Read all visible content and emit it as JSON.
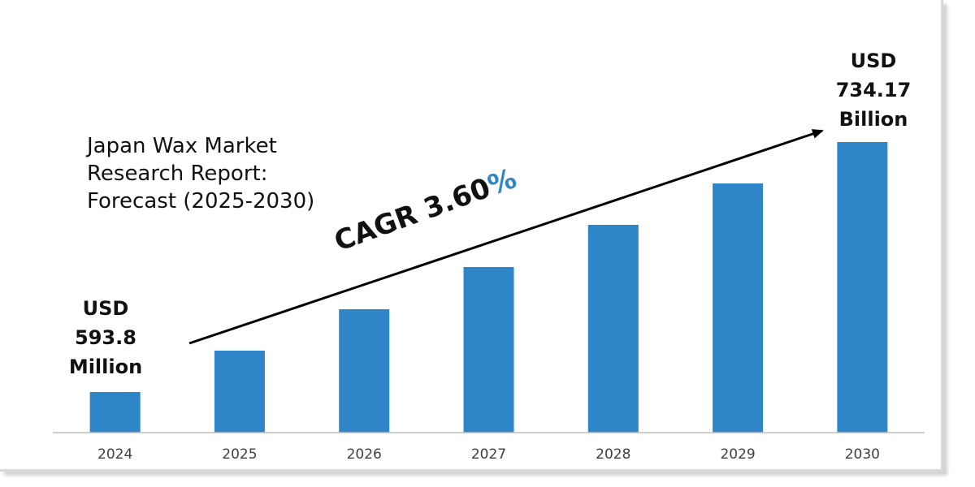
{
  "title": "Japan Wax Market\nResearch Report:\nForecast (2025-2030)",
  "start_annotation": [
    "USD",
    "593.8",
    "Million"
  ],
  "end_annotation": [
    "USD",
    "734.17",
    "Billion"
  ],
  "cagr_label": "CAGR 3.60",
  "cagr_pct_sign": "%",
  "colors": {
    "bar": "#2e86c8",
    "arrow": "#000000",
    "axis": "#bfbfbf"
  },
  "chart_data": {
    "type": "bar",
    "categories": [
      "2024",
      "2025",
      "2026",
      "2027",
      "2028",
      "2029",
      "2030"
    ],
    "values": [
      50,
      101,
      152,
      204,
      256,
      307,
      358
    ],
    "ylim": [
      0,
      400
    ],
    "grid": false,
    "legend": "none",
    "annotation": "arrow from first to last bar labelled CAGR 3.60%"
  }
}
